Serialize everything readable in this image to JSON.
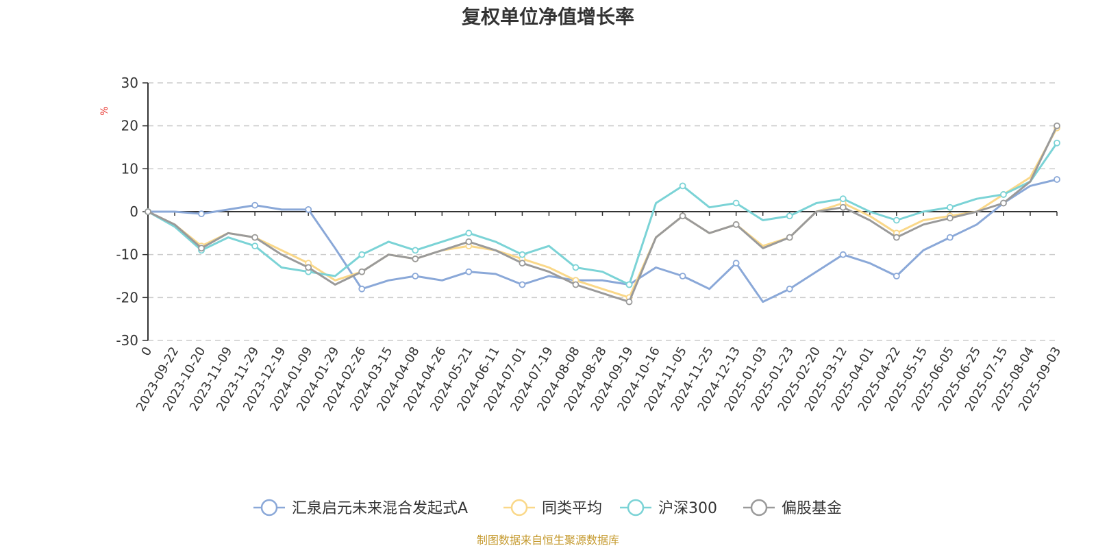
{
  "source_note": "制图数据来自恒生聚源数据库",
  "chart_data": {
    "type": "line",
    "title": "复权单位净值增长率",
    "ylabel": "%",
    "ylim": [
      -30,
      30
    ],
    "yticks": [
      -30,
      -20,
      -10,
      0,
      10,
      20,
      30
    ],
    "grid": true,
    "legend_position": "bottom",
    "x": [
      "0",
      "2023-09-22",
      "2023-10-20",
      "2023-11-09",
      "2023-11-29",
      "2023-12-19",
      "2024-01-09",
      "2024-01-29",
      "2024-02-26",
      "2024-03-15",
      "2024-04-08",
      "2024-04-26",
      "2024-05-21",
      "2024-06-11",
      "2024-07-01",
      "2024-07-19",
      "2024-08-08",
      "2024-08-28",
      "2024-09-19",
      "2024-10-16",
      "2024-11-05",
      "2024-11-25",
      "2024-12-13",
      "2025-01-03",
      "2025-01-23",
      "2025-02-20",
      "2025-03-12",
      "2025-04-01",
      "2025-04-22",
      "2025-05-15",
      "2025-06-05",
      "2025-06-25",
      "2025-07-15",
      "2025-08-04",
      "2025-09-03"
    ],
    "series": [
      {
        "name": "汇泉启元未来混合发起式A",
        "color": "#8aa8d8",
        "values": [
          0,
          0,
          -0.5,
          0.5,
          1.5,
          0.5,
          0.5,
          -8.5,
          -18,
          -16,
          -15,
          -16,
          -14,
          -14.5,
          -17,
          -15,
          -16,
          -16,
          -17,
          -13,
          -15,
          -18,
          -12,
          -21,
          -18,
          -14,
          -10,
          -12,
          -15,
          -9,
          -6,
          -3,
          2,
          6,
          7.5
        ]
      },
      {
        "name": "同类平均",
        "color": "#fad889",
        "values": [
          0,
          -3,
          -8,
          -5,
          -6,
          -9,
          -12,
          -16,
          -14,
          -10,
          -11,
          -9,
          -8,
          -9,
          -11,
          -13,
          -16,
          -18,
          -20,
          -6,
          -1,
          -5,
          -3,
          -8,
          -6,
          0,
          2,
          -1,
          -5,
          -2,
          -1,
          0,
          4,
          8,
          19.5
        ]
      },
      {
        "name": "沪深300",
        "color": "#7bd3d6",
        "values": [
          0,
          -3.5,
          -9,
          -6,
          -8,
          -13,
          -14,
          -15,
          -10,
          -7,
          -9,
          -7,
          -5,
          -7,
          -10,
          -8,
          -13,
          -14,
          -17,
          2,
          6,
          1,
          2,
          -2,
          -1,
          2,
          3,
          0,
          -2,
          0,
          1,
          3,
          4,
          7,
          16
        ]
      },
      {
        "name": "偏股基金",
        "color": "#9a9a9a",
        "values": [
          0,
          -3,
          -8.5,
          -5,
          -6,
          -10,
          -13,
          -17,
          -14,
          -10,
          -11,
          -9,
          -7,
          -9,
          -12,
          -14,
          -17,
          -19,
          -21,
          -6,
          -1,
          -5,
          -3,
          -8.5,
          -6,
          0,
          1,
          -2,
          -6,
          -3,
          -1.5,
          0,
          2,
          7,
          20
        ]
      }
    ]
  }
}
